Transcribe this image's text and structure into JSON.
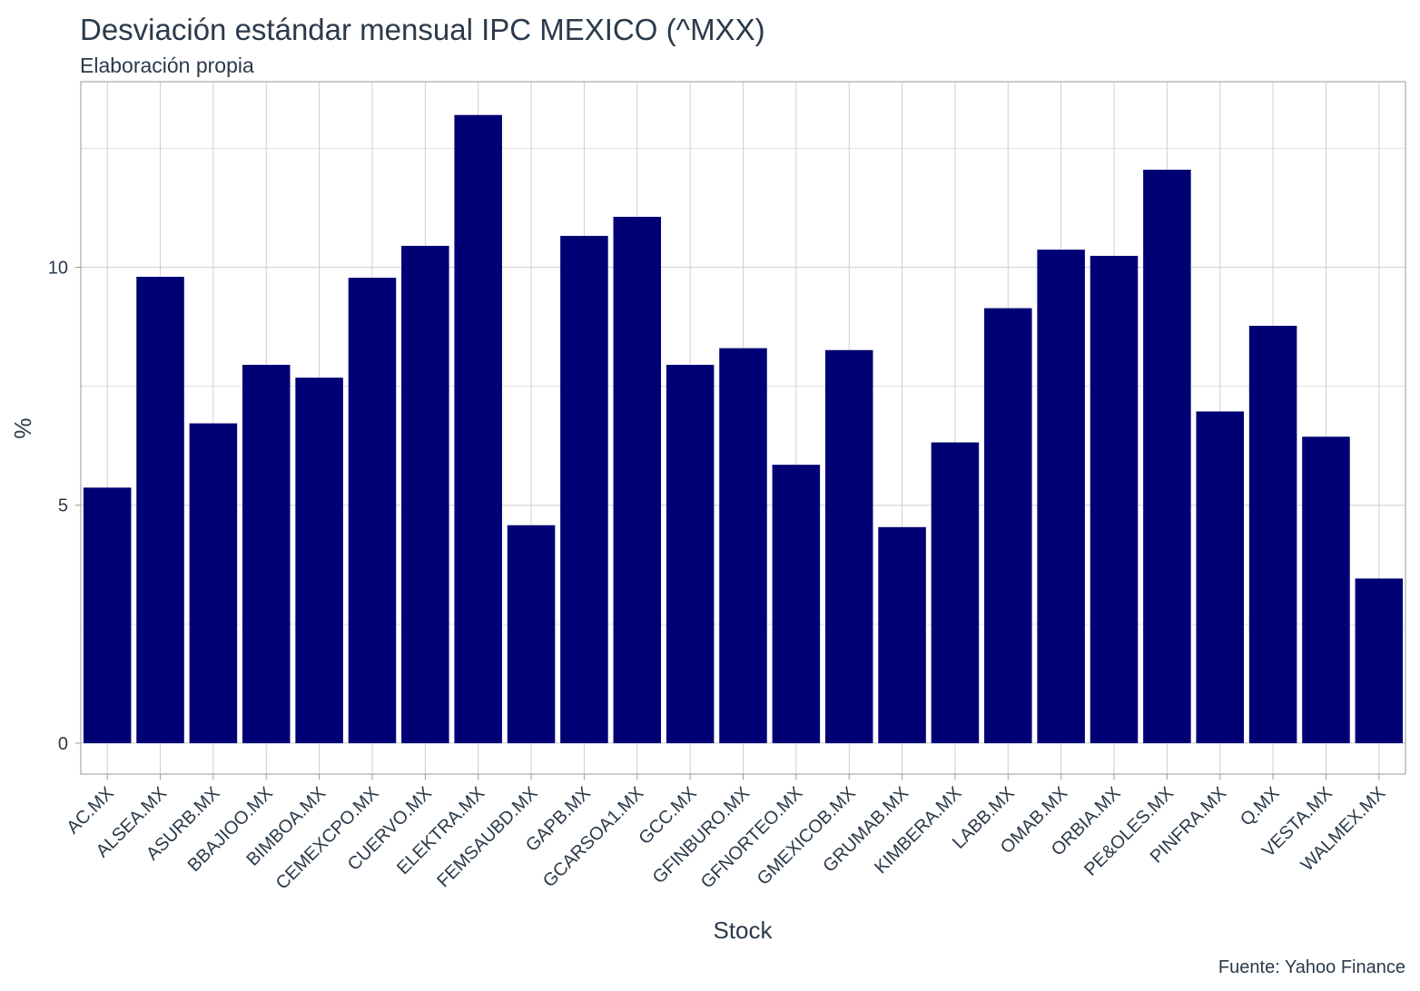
{
  "chart_data": {
    "type": "bar",
    "title": "Desviación estándar mensual IPC MEXICO (^MXX)",
    "subtitle": "Elaboración propia",
    "caption": "Fuente: Yahoo Finance",
    "xlabel": "Stock",
    "ylabel": "%",
    "ylim": [
      -0.65,
      13.9
    ],
    "yticks": [
      0,
      5,
      10
    ],
    "grid": true,
    "bar_color": "#000075",
    "categories": [
      "AC.MX",
      "ALSEA.MX",
      "ASURB.MX",
      "BBAJIOO.MX",
      "BIMBOA.MX",
      "CEMEXCPO.MX",
      "CUERVO.MX",
      "ELEKTRA.MX",
      "FEMSAUBD.MX",
      "GAPB.MX",
      "GCARSOA1.MX",
      "GCC.MX",
      "GFINBURO.MX",
      "GFNORTEO.MX",
      "GMEXICOB.MX",
      "GRUMAB.MX",
      "KIMBERA.MX",
      "LABB.MX",
      "OMAB.MX",
      "ORBIA.MX",
      "PE&OLES.MX",
      "PINFRA.MX",
      "Q.MX",
      "VESTA.MX",
      "WALMEX.MX"
    ],
    "values": [
      5.37,
      9.8,
      6.72,
      7.95,
      7.68,
      9.78,
      10.45,
      13.2,
      4.58,
      10.66,
      11.06,
      7.95,
      8.3,
      5.85,
      8.26,
      4.54,
      6.32,
      9.14,
      10.37,
      10.24,
      12.05,
      6.97,
      8.77,
      6.44,
      3.46
    ]
  }
}
